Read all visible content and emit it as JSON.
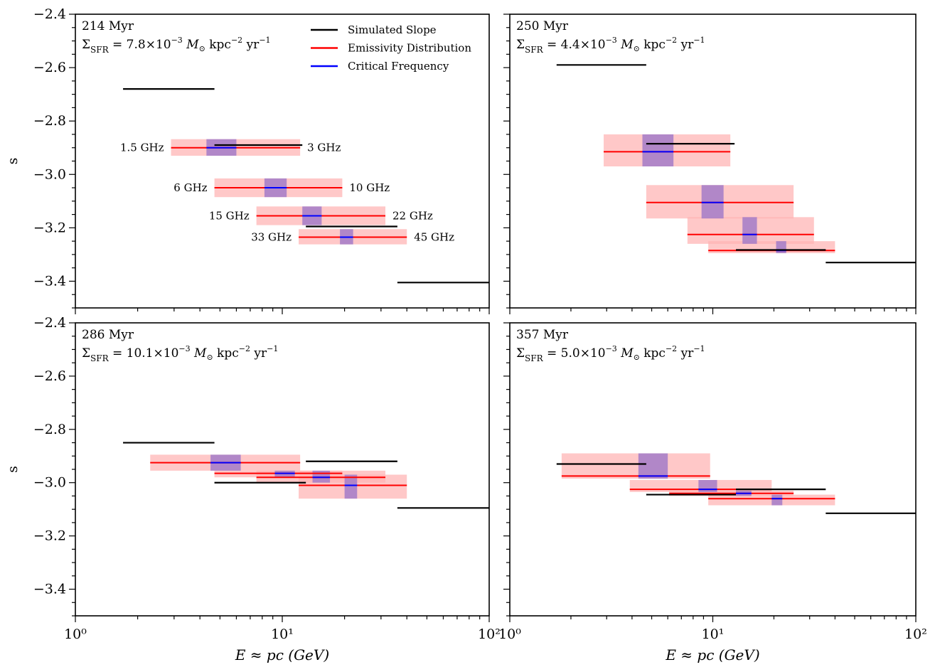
{
  "figure": {
    "xlabel": "E ≈ pc (GeV)",
    "ylabel": "s",
    "x_tick_labels": [
      "10⁰",
      "10¹",
      "10²"
    ],
    "y_tick_labels": [
      "−2.4",
      "−2.6",
      "−2.8",
      "−3.0",
      "−3.2",
      "−3.4"
    ],
    "legend": {
      "items": [
        {
          "label": "Simulated Slope",
          "color": "#000000"
        },
        {
          "label": "Emissivity Distribution",
          "color": "#ff0000"
        },
        {
          "label": "Critical Frequency",
          "color": "#0000ff"
        }
      ]
    },
    "colors": {
      "emissivity_fill": "#ffb3b3",
      "critical_fill": "#a97fc8",
      "simulated": "#000000",
      "emissivity_line": "#ff0000",
      "critical_line": "#0000ff"
    }
  },
  "chart_data": [
    {
      "type": "range-bar",
      "time_label": "214 Myr",
      "sfr_label": "Σ",
      "sfr_sub": "SFR",
      "sfr_value": "= 7.8×10",
      "sfr_exp": "−3",
      "sfr_units": "M",
      "sfr_sun": "⊙",
      "sfr_kpc": "kpc",
      "sfr_kpc_exp": "−2",
      "sfr_yr": "yr",
      "sfr_yr_exp": "−1",
      "xscale": "log",
      "xlim": [
        1,
        100
      ],
      "ylim": [
        -3.5,
        -2.4
      ],
      "simulated": [
        {
          "x1": 1.7,
          "x2": 4.7,
          "s": -2.68
        },
        {
          "x1": 4.7,
          "x2": 12.5,
          "s": -2.89
        },
        {
          "x1": 13.0,
          "x2": 36.0,
          "s": -3.195
        },
        {
          "x1": 36.0,
          "x2": 100.0,
          "s": -3.405
        }
      ],
      "emissivity": [
        {
          "x1": 2.9,
          "x2": 12.2,
          "s": -2.9,
          "s_lo": -2.93,
          "s_hi": -2.868
        },
        {
          "x1": 4.7,
          "x2": 19.5,
          "s": -3.05,
          "s_lo": -3.085,
          "s_hi": -3.015
        },
        {
          "x1": 7.5,
          "x2": 31.5,
          "s": -3.155,
          "s_lo": -3.19,
          "s_hi": -3.12
        },
        {
          "x1": 12.0,
          "x2": 40.0,
          "s": -3.235,
          "s_lo": -3.262,
          "s_hi": -3.205
        }
      ],
      "critical": [
        {
          "x1": 4.3,
          "x2": 6.0,
          "s": -2.9,
          "s_lo": -2.93,
          "s_hi": -2.868
        },
        {
          "x1": 8.2,
          "x2": 10.5,
          "s": -3.05,
          "s_lo": -3.085,
          "s_hi": -3.015
        },
        {
          "x1": 12.5,
          "x2": 15.5,
          "s": -3.155,
          "s_lo": -3.19,
          "s_hi": -3.12
        },
        {
          "x1": 19.0,
          "x2": 22.0,
          "s": -3.235,
          "s_lo": -3.262,
          "s_hi": -3.205
        }
      ],
      "band_labels": [
        {
          "left": "1.5 GHz",
          "right": "3 GHz"
        },
        {
          "left": "6 GHz",
          "right": "10 GHz"
        },
        {
          "left": "15 GHz",
          "right": "22 GHz"
        },
        {
          "left": "33 GHz",
          "right": "45 GHz"
        }
      ]
    },
    {
      "type": "range-bar",
      "time_label": "250 Myr",
      "sfr_label": "Σ",
      "sfr_sub": "SFR",
      "sfr_value": "= 4.4×10",
      "sfr_exp": "−3",
      "sfr_units": "M",
      "sfr_sun": "⊙",
      "sfr_kpc": "kpc",
      "sfr_kpc_exp": "−2",
      "sfr_yr": "yr",
      "sfr_yr_exp": "−1",
      "xscale": "log",
      "xlim": [
        1,
        100
      ],
      "ylim": [
        -3.5,
        -2.4
      ],
      "simulated": [
        {
          "x1": 1.7,
          "x2": 4.7,
          "s": -2.59
        },
        {
          "x1": 4.7,
          "x2": 12.8,
          "s": -2.885
        },
        {
          "x1": 13.0,
          "x2": 36.0,
          "s": -3.283
        },
        {
          "x1": 36.0,
          "x2": 100.0,
          "s": -3.33
        }
      ],
      "emissivity": [
        {
          "x1": 2.9,
          "x2": 12.2,
          "s": -2.915,
          "s_lo": -2.97,
          "s_hi": -2.85
        },
        {
          "x1": 4.7,
          "x2": 25.0,
          "s": -3.105,
          "s_lo": -3.165,
          "s_hi": -3.04
        },
        {
          "x1": 7.5,
          "x2": 31.5,
          "s": -3.225,
          "s_lo": -3.26,
          "s_hi": -3.16
        },
        {
          "x1": 9.5,
          "x2": 40.0,
          "s": -3.285,
          "s_lo": -3.295,
          "s_hi": -3.25
        }
      ],
      "critical": [
        {
          "x1": 4.5,
          "x2": 6.4,
          "s": -2.915,
          "s_lo": -2.97,
          "s_hi": -2.85
        },
        {
          "x1": 8.8,
          "x2": 11.3,
          "s": -3.105,
          "s_lo": -3.165,
          "s_hi": -3.04
        },
        {
          "x1": 14.0,
          "x2": 16.5,
          "s": -3.225,
          "s_lo": -3.26,
          "s_hi": -3.16
        },
        {
          "x1": 20.5,
          "x2": 23.0,
          "s": -3.285,
          "s_lo": -3.295,
          "s_hi": -3.25
        }
      ],
      "band_labels": []
    },
    {
      "type": "range-bar",
      "time_label": "286 Myr",
      "sfr_label": "Σ",
      "sfr_sub": "SFR",
      "sfr_value": "= 10.1×10",
      "sfr_exp": "−3",
      "sfr_units": "M",
      "sfr_sun": "⊙",
      "sfr_kpc": "kpc",
      "sfr_kpc_exp": "−2",
      "sfr_yr": "yr",
      "sfr_yr_exp": "−1",
      "xscale": "log",
      "xlim": [
        1,
        100
      ],
      "ylim": [
        -3.5,
        -2.4
      ],
      "simulated": [
        {
          "x1": 1.7,
          "x2": 4.7,
          "s": -2.85
        },
        {
          "x1": 4.7,
          "x2": 13.0,
          "s": -3.0
        },
        {
          "x1": 13.0,
          "x2": 36.0,
          "s": -2.92
        },
        {
          "x1": 36.0,
          "x2": 100.0,
          "s": -3.095
        }
      ],
      "emissivity": [
        {
          "x1": 2.3,
          "x2": 12.2,
          "s": -2.925,
          "s_lo": -2.955,
          "s_hi": -2.895
        },
        {
          "x1": 4.7,
          "x2": 19.5,
          "s": -2.965,
          "s_lo": -2.98,
          "s_hi": -2.955
        },
        {
          "x1": 7.5,
          "x2": 31.5,
          "s": -2.98,
          "s_lo": -3.0,
          "s_hi": -2.955
        },
        {
          "x1": 12.0,
          "x2": 40.0,
          "s": -3.01,
          "s_lo": -3.06,
          "s_hi": -2.97
        }
      ],
      "critical": [
        {
          "x1": 4.5,
          "x2": 6.3,
          "s": -2.925,
          "s_lo": -2.955,
          "s_hi": -2.895
        },
        {
          "x1": 9.2,
          "x2": 11.5,
          "s": -2.965,
          "s_lo": -2.98,
          "s_hi": -2.955
        },
        {
          "x1": 14.0,
          "x2": 17.0,
          "s": -2.98,
          "s_lo": -3.0,
          "s_hi": -2.955
        },
        {
          "x1": 20.0,
          "x2": 23.0,
          "s": -3.01,
          "s_lo": -3.06,
          "s_hi": -2.97
        }
      ],
      "band_labels": []
    },
    {
      "type": "range-bar",
      "time_label": "357 Myr",
      "sfr_label": "Σ",
      "sfr_sub": "SFR",
      "sfr_value": "= 5.0×10",
      "sfr_exp": "−3",
      "sfr_units": "M",
      "sfr_sun": "⊙",
      "sfr_kpc": "kpc",
      "sfr_kpc_exp": "−2",
      "sfr_yr": "yr",
      "sfr_yr_exp": "−1",
      "xscale": "log",
      "xlim": [
        1,
        100
      ],
      "ylim": [
        -3.5,
        -2.4
      ],
      "simulated": [
        {
          "x1": 1.7,
          "x2": 4.7,
          "s": -2.93
        },
        {
          "x1": 4.7,
          "x2": 13.0,
          "s": -3.045
        },
        {
          "x1": 13.0,
          "x2": 36.0,
          "s": -3.025
        },
        {
          "x1": 36.0,
          "x2": 100.0,
          "s": -3.115
        }
      ],
      "emissivity": [
        {
          "x1": 1.8,
          "x2": 9.7,
          "s": -2.975,
          "s_lo": -2.985,
          "s_hi": -2.89
        },
        {
          "x1": 3.9,
          "x2": 19.5,
          "s": -3.025,
          "s_lo": -3.035,
          "s_hi": -2.99
        },
        {
          "x1": 6.1,
          "x2": 25.0,
          "s": -3.04,
          "s_lo": -3.05,
          "s_hi": -3.03
        },
        {
          "x1": 9.5,
          "x2": 40.0,
          "s": -3.06,
          "s_lo": -3.085,
          "s_hi": -3.045
        }
      ],
      "critical": [
        {
          "x1": 4.3,
          "x2": 6.0,
          "s": -2.975,
          "s_lo": -2.985,
          "s_hi": -2.89
        },
        {
          "x1": 8.5,
          "x2": 10.5,
          "s": -3.025,
          "s_lo": -3.035,
          "s_hi": -2.99
        },
        {
          "x1": 13.0,
          "x2": 15.5,
          "s": -3.04,
          "s_lo": -3.05,
          "s_hi": -3.03
        },
        {
          "x1": 19.5,
          "x2": 22.0,
          "s": -3.06,
          "s_lo": -3.085,
          "s_hi": -3.045
        }
      ],
      "band_labels": []
    }
  ]
}
